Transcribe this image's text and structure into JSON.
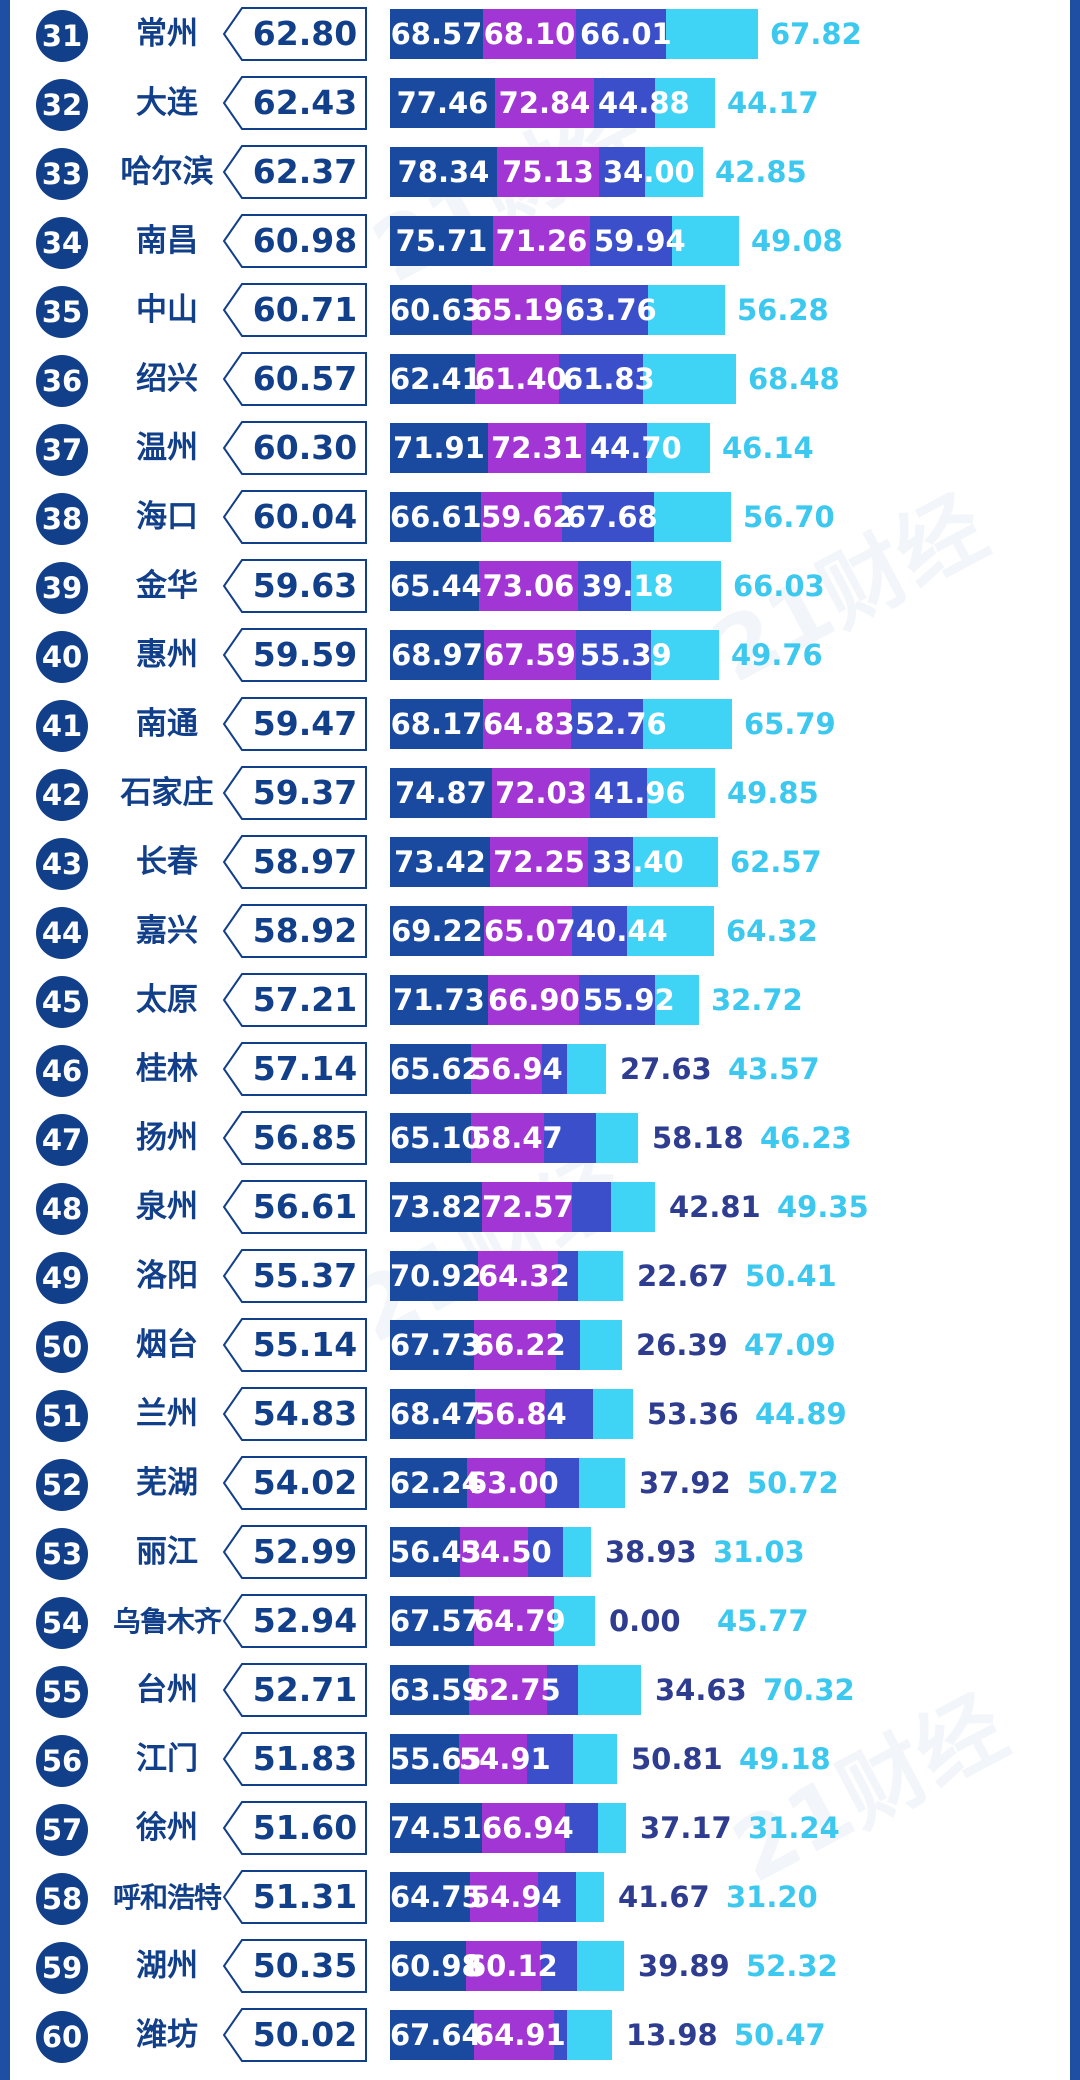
{
  "colors": {
    "dim1": "#1a4aa0",
    "dim2": "#a236d4",
    "dim3": "#3b4fcb",
    "dim4": "#3fd3f5",
    "rank_circle": "#123f8a",
    "text_primary": "#123f8a",
    "text_dim3": "#2e3d8f",
    "text_dim4": "#3cc8ef"
  },
  "watermark_text": "21财经",
  "chart_data": {
    "type": "bar",
    "stacked": true,
    "orientation": "horizontal",
    "title": "",
    "xlabel": "",
    "ylabel": "",
    "legend": "none",
    "grid": false,
    "rows": [
      {
        "rank": 31,
        "city": "常州",
        "score": "62.80",
        "values": [
          68.57,
          68.1,
          66.01,
          67.82
        ]
      },
      {
        "rank": 32,
        "city": "大连",
        "score": "62.43",
        "values": [
          77.46,
          72.84,
          44.88,
          44.17
        ]
      },
      {
        "rank": 33,
        "city": "哈尔滨",
        "score": "62.37",
        "values": [
          78.34,
          75.13,
          34.0,
          42.85
        ]
      },
      {
        "rank": 34,
        "city": "南昌",
        "score": "60.98",
        "values": [
          75.71,
          71.26,
          59.94,
          49.08
        ]
      },
      {
        "rank": 35,
        "city": "中山",
        "score": "60.71",
        "values": [
          60.63,
          65.19,
          63.76,
          56.28
        ]
      },
      {
        "rank": 36,
        "city": "绍兴",
        "score": "60.57",
        "values": [
          62.41,
          61.4,
          61.83,
          68.48
        ]
      },
      {
        "rank": 37,
        "city": "温州",
        "score": "60.30",
        "values": [
          71.91,
          72.31,
          44.7,
          46.14
        ]
      },
      {
        "rank": 38,
        "city": "海口",
        "score": "60.04",
        "values": [
          66.61,
          59.62,
          67.68,
          56.7
        ]
      },
      {
        "rank": 39,
        "city": "金华",
        "score": "59.63",
        "values": [
          65.44,
          73.06,
          39.18,
          66.03
        ]
      },
      {
        "rank": 40,
        "city": "惠州",
        "score": "59.59",
        "values": [
          68.97,
          67.59,
          55.39,
          49.76
        ]
      },
      {
        "rank": 41,
        "city": "南通",
        "score": "59.47",
        "values": [
          68.17,
          64.83,
          52.76,
          65.79
        ]
      },
      {
        "rank": 42,
        "city": "石家庄",
        "score": "59.37",
        "values": [
          74.87,
          72.03,
          41.96,
          49.85
        ]
      },
      {
        "rank": 43,
        "city": "长春",
        "score": "58.97",
        "values": [
          73.42,
          72.25,
          33.4,
          62.57
        ]
      },
      {
        "rank": 44,
        "city": "嘉兴",
        "score": "58.92",
        "values": [
          69.22,
          65.07,
          40.44,
          64.32
        ]
      },
      {
        "rank": 45,
        "city": "太原",
        "score": "57.21",
        "values": [
          71.73,
          66.9,
          55.92,
          32.72
        ]
      },
      {
        "rank": 46,
        "city": "桂林",
        "score": "57.14",
        "values": [
          65.62,
          56.94,
          27.63,
          43.57
        ]
      },
      {
        "rank": 47,
        "city": "扬州",
        "score": "56.85",
        "values": [
          65.1,
          58.47,
          58.18,
          46.23
        ]
      },
      {
        "rank": 48,
        "city": "泉州",
        "score": "56.61",
        "values": [
          73.82,
          72.57,
          42.81,
          49.35
        ]
      },
      {
        "rank": 49,
        "city": "洛阳",
        "score": "55.37",
        "values": [
          70.92,
          64.32,
          22.67,
          50.41
        ]
      },
      {
        "rank": 50,
        "city": "烟台",
        "score": "55.14",
        "values": [
          67.73,
          66.22,
          26.39,
          47.09
        ]
      },
      {
        "rank": 51,
        "city": "兰州",
        "score": "54.83",
        "values": [
          68.47,
          56.84,
          53.36,
          44.89
        ]
      },
      {
        "rank": 52,
        "city": "芜湖",
        "score": "54.02",
        "values": [
          62.24,
          63.0,
          37.92,
          50.72
        ]
      },
      {
        "rank": 53,
        "city": "丽江",
        "score": "52.99",
        "values": [
          56.43,
          54.5,
          38.93,
          31.03
        ]
      },
      {
        "rank": 54,
        "city": "乌鲁木齐",
        "score": "52.94",
        "values": [
          67.57,
          64.79,
          0.0,
          45.77
        ]
      },
      {
        "rank": 55,
        "city": "台州",
        "score": "52.71",
        "values": [
          63.59,
          62.75,
          34.63,
          70.32
        ]
      },
      {
        "rank": 56,
        "city": "江门",
        "score": "51.83",
        "values": [
          55.65,
          54.91,
          50.81,
          49.18
        ]
      },
      {
        "rank": 57,
        "city": "徐州",
        "score": "51.60",
        "values": [
          74.51,
          66.94,
          37.17,
          31.24
        ]
      },
      {
        "rank": 58,
        "city": "呼和浩特",
        "score": "51.31",
        "values": [
          64.75,
          54.94,
          41.67,
          31.2
        ]
      },
      {
        "rank": 59,
        "city": "湖州",
        "score": "50.35",
        "values": [
          60.98,
          60.12,
          39.89,
          52.32
        ]
      },
      {
        "rank": 60,
        "city": "潍坊",
        "score": "50.02",
        "values": [
          67.64,
          64.91,
          13.98,
          50.47
        ]
      }
    ]
  }
}
